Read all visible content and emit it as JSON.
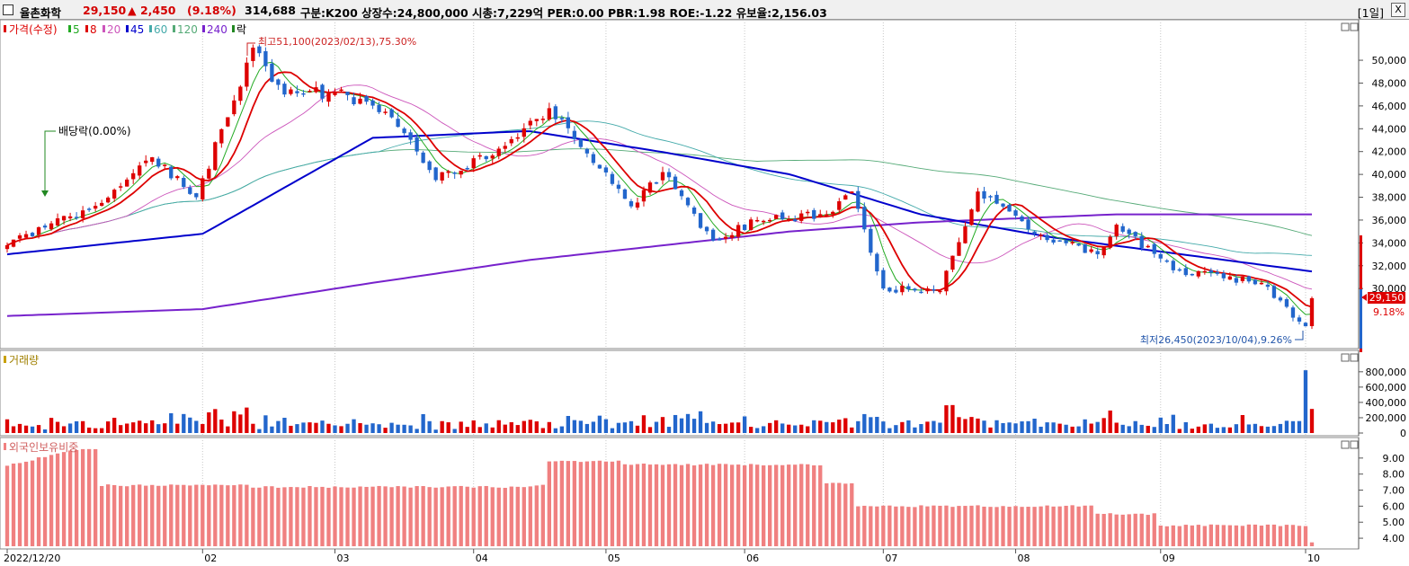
{
  "header": {
    "stock_name": "율촌화학",
    "price": "29,150",
    "change": "▲ 2,450",
    "change_pct": "(9.18%)",
    "volume": "314,688",
    "info": "구분:K200 상장수:24,800,000 시총:7,229억 PER:0.00 PBR:1.98 ROE:-1.22 유보율:2,156.03",
    "period": "[1일]",
    "close_label": "X"
  },
  "price_panel": {
    "legend": {
      "main": "가격(수정)",
      "ma": [
        {
          "label": "5",
          "color": "#22aa22"
        },
        {
          "label": "8",
          "color": "#dd0000"
        },
        {
          "label": "20",
          "color": "#cc55bb"
        },
        {
          "label": "45",
          "color": "#0000cc"
        },
        {
          "label": "60",
          "color": "#44aaaa"
        },
        {
          "label": "120",
          "color": "#55aa77"
        },
        {
          "label": "240",
          "color": "#7722cc"
        }
      ],
      "ex_label": "락"
    },
    "annotations": {
      "high": "최고51,100(2023/02/13),75.30%",
      "low": "최저26,450(2023/10/04),9.26%",
      "dividend": "배당락(0.00%)"
    },
    "current_price_label": "29,150",
    "current_pct_label": "9.18%",
    "y_ticks": [
      "50,000",
      "48,000",
      "46,000",
      "44,000",
      "42,000",
      "40,000",
      "38,000",
      "36,000",
      "34,000",
      "32,000",
      "30,000"
    ],
    "colors": {
      "up": "#dd0000",
      "down": "#2266cc"
    }
  },
  "volume_panel": {
    "title": "거래량",
    "y_ticks": [
      "800,000",
      "600,000",
      "400,000",
      "200,000",
      "0"
    ]
  },
  "foreign_panel": {
    "title": "외국인보유비중",
    "y_ticks": [
      "9.00",
      "8.00",
      "7.00",
      "6.00",
      "5.00",
      "4.00"
    ],
    "bar_color": "#f08080"
  },
  "x_axis": {
    "labels": [
      "2022/12/20",
      "02",
      "03",
      "04",
      "05",
      "06",
      "07",
      "08",
      "09",
      "10"
    ]
  },
  "chart_data": {
    "type": "candlestick",
    "price_keypoints": [
      [
        "2022/12/20",
        33800
      ],
      [
        "2023/01/10",
        37500
      ],
      [
        "2023/01/20",
        41500
      ],
      [
        "2023/01/31",
        38000
      ],
      [
        "2023/02/13",
        51100
      ],
      [
        "2023/02/20",
        47000
      ],
      [
        "2023/03/02",
        47200
      ],
      [
        "2023/03/15",
        45000
      ],
      [
        "2023/03/25",
        39500
      ],
      [
        "2023/04/10",
        42500
      ],
      [
        "2023/04/19",
        45800
      ],
      [
        "2023/04/28",
        41000
      ],
      [
        "2023/05/08",
        37200
      ],
      [
        "2023/05/15",
        40200
      ],
      [
        "2023/05/25",
        34200
      ],
      [
        "2023/06/05",
        36000
      ],
      [
        "2023/06/20",
        36500
      ],
      [
        "2023/06/26",
        38500
      ],
      [
        "2023/07/03",
        30000
      ],
      [
        "2023/07/14",
        29800
      ],
      [
        "2023/07/24",
        38500
      ],
      [
        "2023/08/04",
        34800
      ],
      [
        "2023/08/18",
        33000
      ],
      [
        "2023/08/23",
        35600
      ],
      [
        "2023/09/05",
        31600
      ],
      [
        "2023/09/25",
        30500
      ],
      [
        "2023/10/04",
        26450
      ],
      [
        "2023/10/05",
        29150
      ]
    ],
    "ma_keypoints": {
      "45": [
        [
          0,
          33000
        ],
        [
          0.15,
          34800
        ],
        [
          0.28,
          43200
        ],
        [
          0.4,
          43800
        ],
        [
          0.5,
          42000
        ],
        [
          0.6,
          40000
        ],
        [
          0.7,
          36500
        ],
        [
          0.8,
          34500
        ],
        [
          0.9,
          33000
        ],
        [
          1.0,
          31500
        ]
      ],
      "240": [
        [
          0,
          27600
        ],
        [
          0.15,
          28200
        ],
        [
          0.28,
          30500
        ],
        [
          0.4,
          32500
        ],
        [
          0.6,
          35000
        ],
        [
          0.7,
          35800
        ],
        [
          0.85,
          36500
        ],
        [
          1.0,
          36500
        ]
      ]
    },
    "volume_peak": 820000,
    "foreign_ratio_keypoints": [
      [
        "2022/12/20",
        8.5
      ],
      [
        "2023/01/03",
        9.5
      ],
      [
        "2023/01/10",
        7.3
      ],
      [
        "2023/02/10",
        7.3
      ],
      [
        "2023/02/13",
        7.2
      ],
      [
        "2023/04/17",
        7.3
      ],
      [
        "2023/04/19",
        8.8
      ],
      [
        "2023/05/05",
        8.6
      ],
      [
        "2023/06/20",
        7.4
      ],
      [
        "2023/06/27",
        6.0
      ],
      [
        "2023/08/20",
        5.5
      ],
      [
        "2023/09/01",
        4.8
      ],
      [
        "2023/10/04",
        4.7
      ],
      [
        "2023/10/05",
        3.7
      ]
    ]
  }
}
